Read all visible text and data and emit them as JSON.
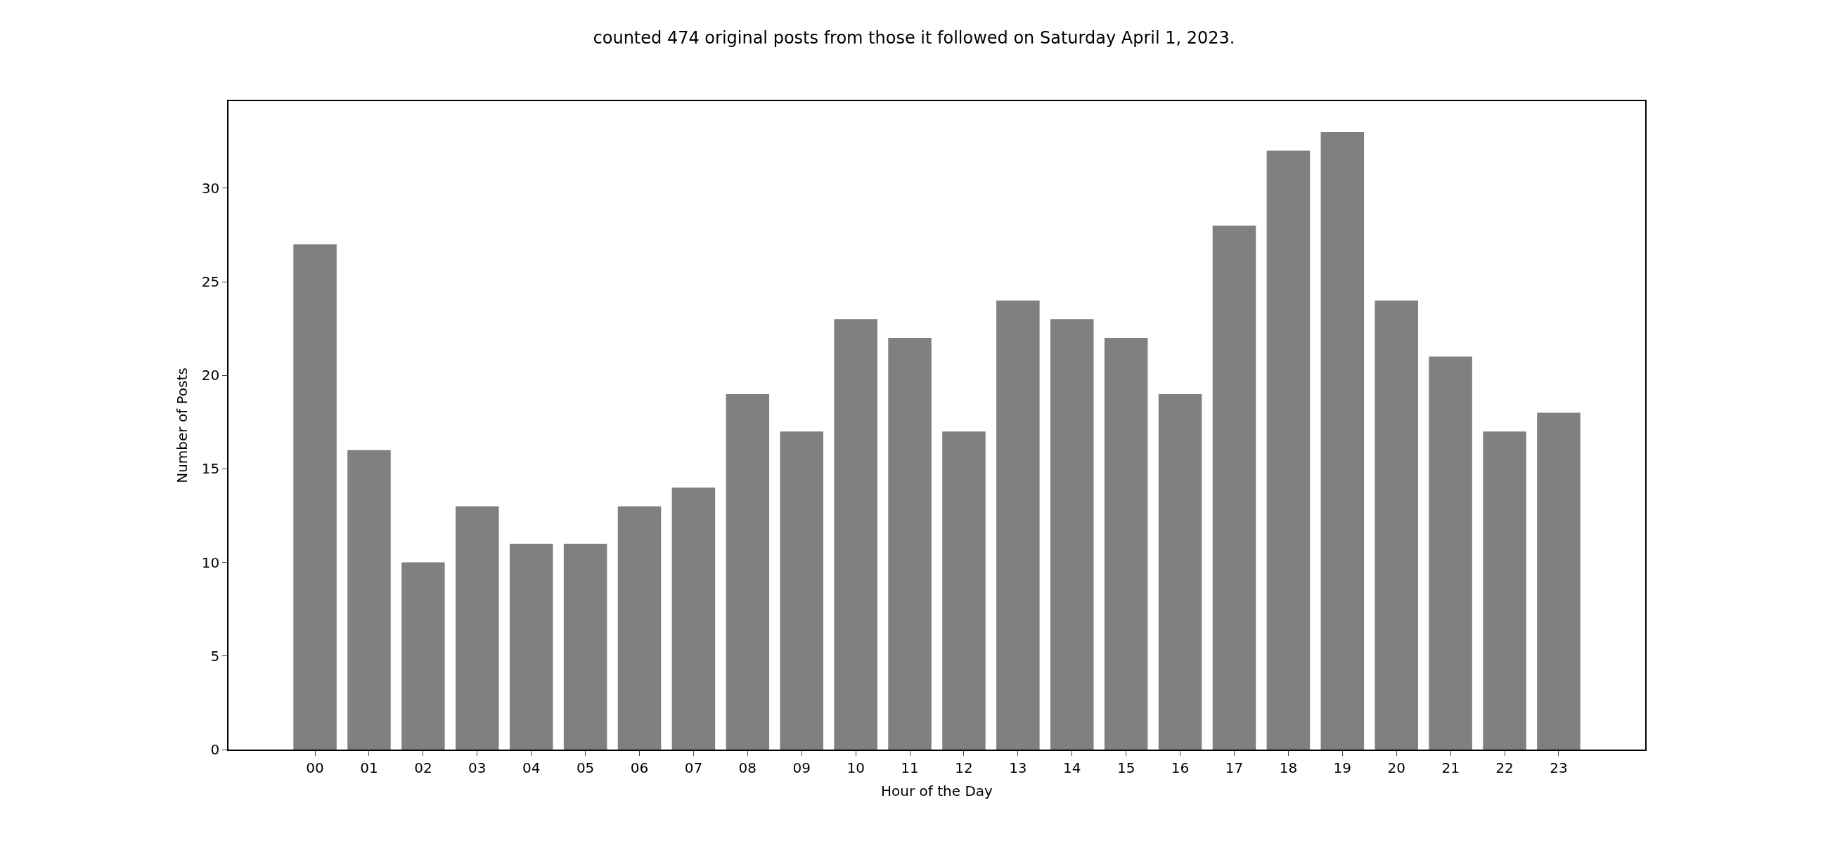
{
  "chart_data": {
    "type": "bar",
    "title": "counted 474 original posts from those it followed on Saturday April 1, 2023.",
    "xlabel": "Hour of the Day",
    "ylabel": "Number of Posts",
    "categories": [
      "00",
      "01",
      "02",
      "03",
      "04",
      "05",
      "06",
      "07",
      "08",
      "09",
      "10",
      "11",
      "12",
      "13",
      "14",
      "15",
      "16",
      "17",
      "18",
      "19",
      "20",
      "21",
      "22",
      "23"
    ],
    "values": [
      27,
      16,
      10,
      13,
      11,
      11,
      13,
      14,
      19,
      17,
      23,
      22,
      17,
      24,
      23,
      22,
      19,
      28,
      32,
      33,
      24,
      21,
      17,
      18
    ],
    "color": "#808080",
    "ylim": [
      0,
      34.65
    ],
    "yticks": [
      0,
      5,
      10,
      15,
      20,
      25,
      30
    ],
    "legend": false
  }
}
